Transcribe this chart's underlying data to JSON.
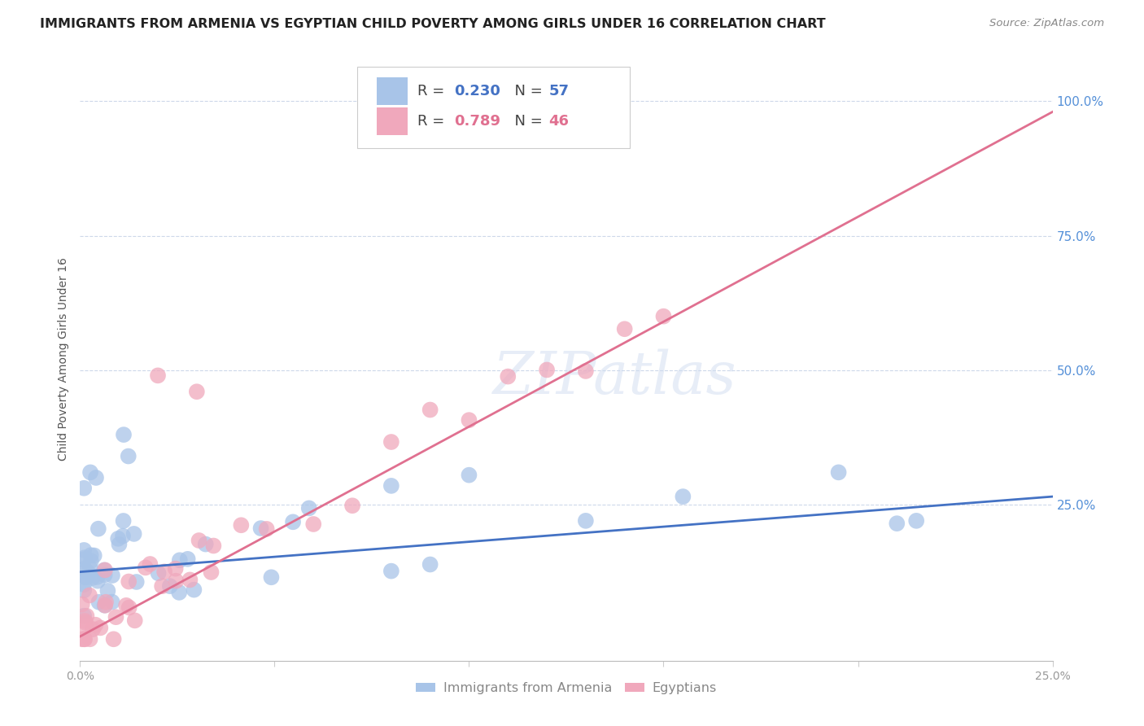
{
  "title": "IMMIGRANTS FROM ARMENIA VS EGYPTIAN CHILD POVERTY AMONG GIRLS UNDER 16 CORRELATION CHART",
  "source": "Source: ZipAtlas.com",
  "ylabel": "Child Poverty Among Girls Under 16",
  "right_yticks": [
    0.0,
    0.25,
    0.5,
    0.75,
    1.0
  ],
  "right_yticklabels": [
    "",
    "25.0%",
    "50.0%",
    "75.0%",
    "100.0%"
  ],
  "xlim": [
    0.0,
    0.25
  ],
  "ylim": [
    -0.04,
    1.08
  ],
  "blue_R": 0.23,
  "blue_N": 57,
  "pink_R": 0.789,
  "pink_N": 46,
  "blue_color": "#A8C4E8",
  "pink_color": "#F0A8BC",
  "blue_line_color": "#4472C4",
  "pink_line_color": "#E07090",
  "legend_label_blue": "Immigrants from Armenia",
  "legend_label_pink": "Egyptians",
  "watermark": "ZIPatlas",
  "background_color": "#FFFFFF",
  "blue_trend_x": [
    0.0,
    0.25
  ],
  "blue_trend_y": [
    0.125,
    0.265
  ],
  "pink_trend_x": [
    0.0,
    0.25
  ],
  "pink_trend_y": [
    0.005,
    0.98
  ],
  "grid_color": "#C8D4E8",
  "yticks_right_color": "#5590D8",
  "title_color": "#222222",
  "title_fontsize": 11.5,
  "axis_label_fontsize": 10,
  "tick_label_fontsize": 10
}
